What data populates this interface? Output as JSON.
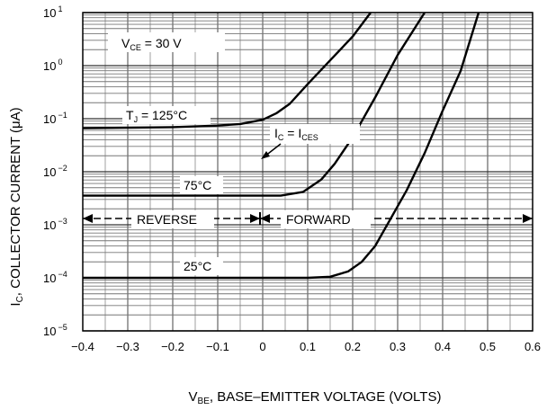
{
  "chart_data": {
    "type": "line",
    "xlabel": {
      "main": "V",
      "sub": "BE",
      "rest": ", BASE–EMITTER VOLTAGE (VOLTS)"
    },
    "ylabel": {
      "main": "I",
      "sub": "C",
      "rest": ", COLLECTOR CURRENT (μA)"
    },
    "x_range": [
      -0.4,
      0.6
    ],
    "y_range_log10": [
      -5,
      1
    ],
    "y_scale": "log",
    "grid": true,
    "x_ticks": [
      "−0.4",
      "−0.3",
      "−0.2",
      "−0.1",
      "0",
      "0.1",
      "0.2",
      "0.3",
      "0.4",
      "0.5",
      "0.6"
    ],
    "x_tick_values": [
      -0.4,
      -0.3,
      -0.2,
      -0.1,
      0,
      0.1,
      0.2,
      0.3,
      0.4,
      0.5,
      0.6
    ],
    "y_ticks": [
      {
        "base": "10",
        "exp": "1",
        "value": 1
      },
      {
        "base": "10",
        "exp": "0",
        "value": 0
      },
      {
        "base": "10",
        "exp": "−1",
        "value": -1
      },
      {
        "base": "10",
        "exp": "−2",
        "value": -2
      },
      {
        "base": "10",
        "exp": "−3",
        "value": -3
      },
      {
        "base": "10",
        "exp": "−4",
        "value": -4
      },
      {
        "base": "10",
        "exp": "−5",
        "value": -5
      }
    ],
    "series": [
      {
        "name": "T J = 125°C",
        "x": [
          -0.4,
          -0.2,
          -0.1,
          -0.05,
          0.0,
          0.03,
          0.06,
          0.1,
          0.15,
          0.2,
          0.24
        ],
        "log10_y": [
          -1.18,
          -1.16,
          -1.13,
          -1.1,
          -1.02,
          -0.9,
          -0.72,
          -0.35,
          0.1,
          0.55,
          1.0
        ]
      },
      {
        "name": "75°C",
        "x": [
          -0.4,
          0.0,
          0.04,
          0.09,
          0.13,
          0.16,
          0.2,
          0.25,
          0.3,
          0.36
        ],
        "log10_y": [
          -2.45,
          -2.45,
          -2.45,
          -2.38,
          -2.15,
          -1.85,
          -1.35,
          -0.6,
          0.2,
          1.0
        ]
      },
      {
        "name": "25°C",
        "x": [
          -0.4,
          0.0,
          0.1,
          0.15,
          0.19,
          0.22,
          0.25,
          0.28,
          0.32,
          0.36,
          0.4,
          0.44,
          0.48
        ],
        "log10_y": [
          -4.0,
          -4.0,
          -4.0,
          -3.98,
          -3.88,
          -3.7,
          -3.4,
          -2.95,
          -2.35,
          -1.65,
          -0.85,
          -0.1,
          1.0
        ]
      }
    ],
    "annotations": {
      "vce": {
        "main": "V",
        "sub": "CE",
        "rest": " = 30 V"
      },
      "t125": {
        "main": "T",
        "sub": "J",
        "rest": " = 125°C"
      },
      "t75": "75°C",
      "t25": "25°C",
      "ic": {
        "a": "I",
        "asub": "C",
        "mid": " = I",
        "bsub": "CES"
      },
      "reverse": "REVERSE",
      "forward": "FORWARD"
    }
  }
}
